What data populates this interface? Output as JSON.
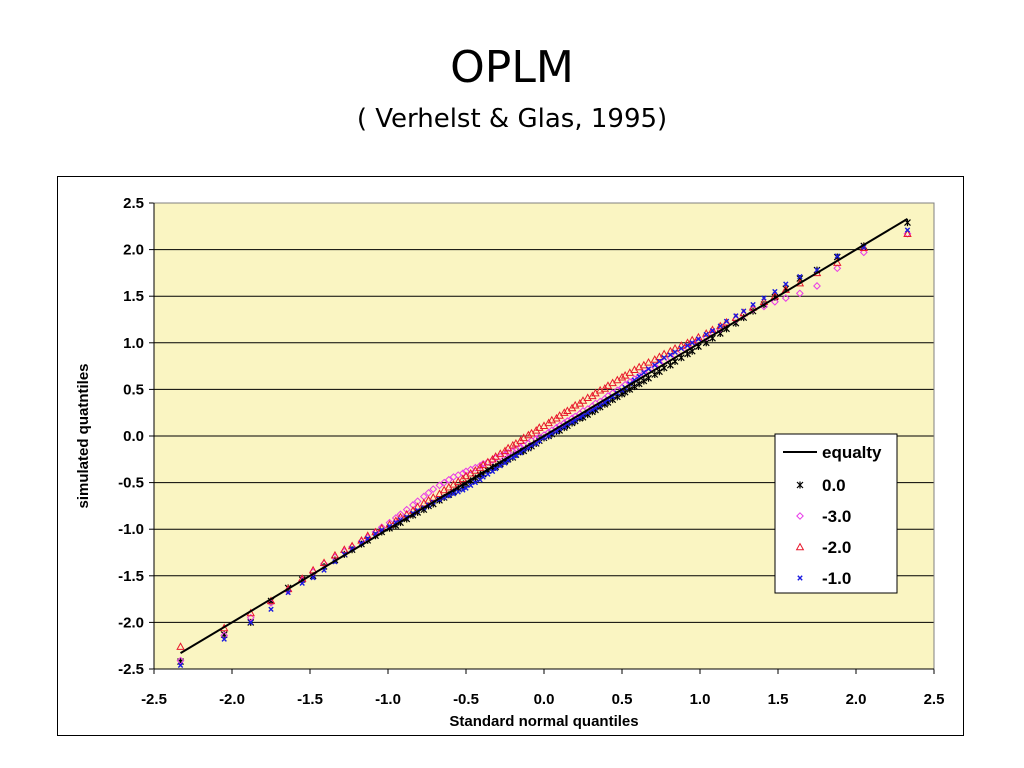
{
  "slide": {
    "title": "OPLM",
    "subtitle": "( Verhelst & Glas, 1995)"
  },
  "colors": {
    "plot_background": "#FAF5C2",
    "gridline": "#000000",
    "equality": "#000000",
    "series_0": "#000000",
    "series_-3": "#E838E8",
    "series_-2": "#E8182C",
    "series_-1": "#1A1AE0"
  },
  "chart_data": {
    "type": "scatter",
    "title": "",
    "xlabel": "Standard normal quantiles",
    "ylabel": "simulated quatntiles",
    "xlim": [
      -2.5,
      2.5
    ],
    "ylim": [
      -2.5,
      2.5
    ],
    "x_ticks": [
      "-2.5",
      "-2.0",
      "-1.5",
      "-1.0",
      "-0.5",
      "0.0",
      "0.5",
      "1.0",
      "1.5",
      "2.0",
      "2.5"
    ],
    "y_ticks": [
      "2.5",
      "2.0",
      "1.5",
      "1.0",
      "0.5",
      "0.0",
      "-0.5",
      "-1.0",
      "-1.5",
      "-2.0",
      "-2.5"
    ],
    "grid": "horizontal",
    "legend_position": "right",
    "line": {
      "name": "equalty",
      "x": [
        -2.33,
        2.33
      ],
      "y": [
        -2.33,
        2.33
      ]
    },
    "x": [
      -2.33,
      -2.05,
      -1.88,
      -1.75,
      -1.64,
      -1.55,
      -1.48,
      -1.41,
      -1.34,
      -1.28,
      -1.23,
      -1.17,
      -1.13,
      -1.08,
      -1.04,
      -0.99,
      -0.95,
      -0.92,
      -0.88,
      -0.84,
      -0.81,
      -0.77,
      -0.74,
      -0.71,
      -0.67,
      -0.64,
      -0.61,
      -0.58,
      -0.55,
      -0.52,
      -0.5,
      -0.47,
      -0.44,
      -0.41,
      -0.39,
      -0.36,
      -0.33,
      -0.31,
      -0.28,
      -0.25,
      -0.23,
      -0.2,
      -0.18,
      -0.15,
      -0.13,
      -0.1,
      -0.08,
      -0.05,
      -0.03,
      0.0,
      0.03,
      0.05,
      0.08,
      0.1,
      0.13,
      0.15,
      0.18,
      0.2,
      0.23,
      0.25,
      0.28,
      0.31,
      0.33,
      0.36,
      0.39,
      0.41,
      0.44,
      0.47,
      0.5,
      0.52,
      0.55,
      0.58,
      0.61,
      0.64,
      0.67,
      0.71,
      0.74,
      0.77,
      0.81,
      0.84,
      0.88,
      0.92,
      0.95,
      0.99,
      1.04,
      1.08,
      1.13,
      1.17,
      1.23,
      1.28,
      1.34,
      1.41,
      1.48,
      1.55,
      1.64,
      1.75,
      1.88,
      2.05,
      2.33
    ],
    "series": [
      {
        "name": "0.0",
        "marker": "star",
        "y": [
          -2.42,
          -2.13,
          -2.0,
          -1.77,
          -1.63,
          -1.54,
          -1.5,
          -1.4,
          -1.33,
          -1.27,
          -1.22,
          -1.16,
          -1.12,
          -1.07,
          -1.03,
          -0.99,
          -0.96,
          -0.93,
          -0.89,
          -0.85,
          -0.82,
          -0.79,
          -0.75,
          -0.73,
          -0.69,
          -0.66,
          -0.63,
          -0.6,
          -0.56,
          -0.54,
          -0.51,
          -0.48,
          -0.45,
          -0.42,
          -0.41,
          -0.37,
          -0.34,
          -0.33,
          -0.3,
          -0.27,
          -0.25,
          -0.23,
          -0.2,
          -0.17,
          -0.16,
          -0.13,
          -0.11,
          -0.08,
          -0.05,
          -0.02,
          0.0,
          0.02,
          0.05,
          0.06,
          0.09,
          0.11,
          0.14,
          0.16,
          0.19,
          0.2,
          0.23,
          0.26,
          0.28,
          0.31,
          0.34,
          0.36,
          0.39,
          0.42,
          0.45,
          0.47,
          0.5,
          0.53,
          0.56,
          0.59,
          0.62,
          0.66,
          0.69,
          0.73,
          0.76,
          0.8,
          0.84,
          0.88,
          0.91,
          0.96,
          1.0,
          1.05,
          1.1,
          1.15,
          1.21,
          1.27,
          1.34,
          1.41,
          1.49,
          1.58,
          1.69,
          1.78,
          1.92,
          2.04,
          2.29
        ]
      },
      {
        "name": "-3.0",
        "marker": "diamond",
        "y": [
          -2.41,
          -2.14,
          -1.95,
          -1.79,
          -1.66,
          -1.55,
          -1.46,
          -1.37,
          -1.3,
          -1.24,
          -1.19,
          -1.13,
          -1.09,
          -1.03,
          -0.98,
          -0.93,
          -0.88,
          -0.84,
          -0.79,
          -0.74,
          -0.7,
          -0.65,
          -0.61,
          -0.57,
          -0.53,
          -0.5,
          -0.47,
          -0.44,
          -0.42,
          -0.4,
          -0.38,
          -0.36,
          -0.34,
          -0.32,
          -0.3,
          -0.28,
          -0.26,
          -0.24,
          -0.22,
          -0.2,
          -0.18,
          -0.16,
          -0.14,
          -0.12,
          -0.1,
          -0.08,
          -0.05,
          -0.03,
          -0.01,
          0.01,
          0.04,
          0.06,
          0.09,
          0.11,
          0.14,
          0.16,
          0.19,
          0.21,
          0.24,
          0.27,
          0.29,
          0.32,
          0.35,
          0.37,
          0.4,
          0.43,
          0.46,
          0.49,
          0.52,
          0.55,
          0.58,
          0.61,
          0.64,
          0.67,
          0.7,
          0.74,
          0.77,
          0.8,
          0.84,
          0.87,
          0.91,
          0.95,
          0.98,
          1.02,
          1.06,
          1.11,
          1.15,
          1.2,
          1.25,
          1.3,
          1.36,
          1.39,
          1.44,
          1.48,
          1.53,
          1.61,
          1.8,
          1.97,
          2.17
        ]
      },
      {
        "name": "-2.0",
        "marker": "triangle",
        "y": [
          -2.26,
          -2.06,
          -1.9,
          -1.77,
          -1.64,
          -1.53,
          -1.44,
          -1.36,
          -1.28,
          -1.22,
          -1.18,
          -1.12,
          -1.07,
          -1.03,
          -0.99,
          -0.95,
          -0.91,
          -0.87,
          -0.84,
          -0.8,
          -0.76,
          -0.72,
          -0.69,
          -0.66,
          -0.62,
          -0.58,
          -0.55,
          -0.52,
          -0.49,
          -0.46,
          -0.43,
          -0.4,
          -0.37,
          -0.34,
          -0.31,
          -0.28,
          -0.25,
          -0.22,
          -0.19,
          -0.16,
          -0.13,
          -0.1,
          -0.08,
          -0.05,
          -0.02,
          0.01,
          0.03,
          0.06,
          0.09,
          0.11,
          0.14,
          0.17,
          0.19,
          0.22,
          0.25,
          0.27,
          0.3,
          0.33,
          0.35,
          0.38,
          0.41,
          0.43,
          0.46,
          0.49,
          0.51,
          0.54,
          0.57,
          0.6,
          0.63,
          0.65,
          0.68,
          0.71,
          0.74,
          0.76,
          0.79,
          0.82,
          0.85,
          0.88,
          0.91,
          0.94,
          0.97,
          1.0,
          1.03,
          1.06,
          1.1,
          1.14,
          1.18,
          1.22,
          1.27,
          1.32,
          1.38,
          1.44,
          1.5,
          1.57,
          1.64,
          1.75,
          1.86,
          2.02,
          2.17
        ]
      },
      {
        "name": "-1.0",
        "marker": "x",
        "y": [
          -2.46,
          -2.18,
          -2.0,
          -1.86,
          -1.68,
          -1.58,
          -1.52,
          -1.44,
          -1.35,
          -1.27,
          -1.21,
          -1.15,
          -1.1,
          -1.05,
          -1.01,
          -0.97,
          -0.93,
          -0.9,
          -0.87,
          -0.83,
          -0.8,
          -0.77,
          -0.74,
          -0.71,
          -0.68,
          -0.66,
          -0.64,
          -0.62,
          -0.6,
          -0.58,
          -0.56,
          -0.53,
          -0.5,
          -0.47,
          -0.44,
          -0.41,
          -0.38,
          -0.35,
          -0.32,
          -0.29,
          -0.26,
          -0.23,
          -0.21,
          -0.18,
          -0.15,
          -0.13,
          -0.1,
          -0.08,
          -0.05,
          -0.02,
          0.0,
          0.03,
          0.05,
          0.08,
          0.1,
          0.13,
          0.15,
          0.17,
          0.2,
          0.22,
          0.25,
          0.28,
          0.3,
          0.33,
          0.36,
          0.39,
          0.42,
          0.46,
          0.49,
          0.52,
          0.56,
          0.6,
          0.64,
          0.68,
          0.72,
          0.76,
          0.8,
          0.84,
          0.87,
          0.9,
          0.94,
          0.97,
          1.0,
          1.04,
          1.09,
          1.13,
          1.18,
          1.23,
          1.29,
          1.34,
          1.41,
          1.48,
          1.55,
          1.63,
          1.71,
          1.78,
          1.93,
          2.03,
          2.21
        ]
      }
    ]
  }
}
